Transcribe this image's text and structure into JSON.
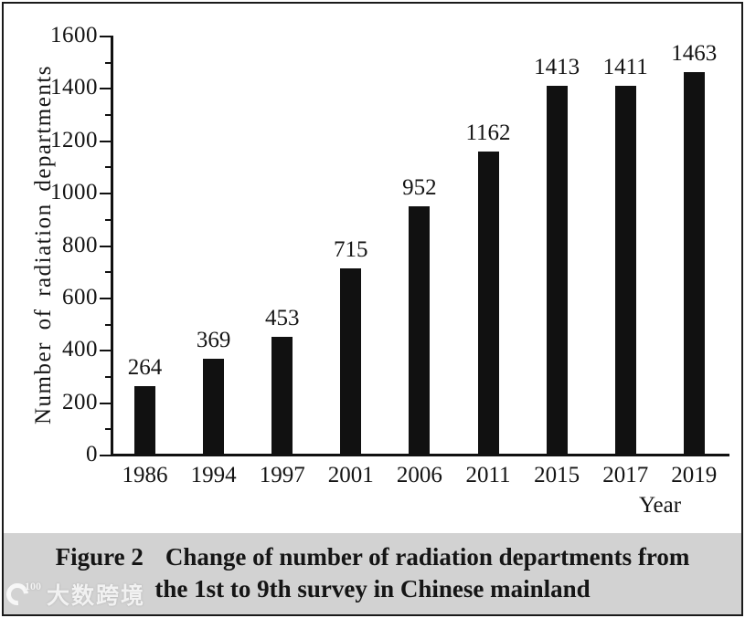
{
  "chart_data": {
    "type": "bar",
    "title": "",
    "categories": [
      "1986",
      "1994",
      "1997",
      "2001",
      "2006",
      "2011",
      "2015",
      "2017",
      "2019"
    ],
    "values": [
      264,
      369,
      453,
      715,
      952,
      1162,
      1413,
      1411,
      1463
    ],
    "value_labels": [
      "264",
      "369",
      "453",
      "715",
      "952",
      "1162",
      "1413",
      "1411",
      "1463"
    ],
    "xlabel": "Year",
    "ylabel": "Number of radiation departments",
    "ylim": [
      0,
      1600
    ],
    "ytick_major_step": 200,
    "ytick_minor_step": 100,
    "ytick_labels": [
      "0",
      "200",
      "400",
      "600",
      "800",
      "1000",
      "1200",
      "1400",
      "1600"
    ],
    "grid": "off",
    "legend": "none",
    "bar_color": "#111111"
  },
  "caption": {
    "figure_label": "Figure 2",
    "title_line1": "Change of number of radiation departments from",
    "title_line2": "the 1st to 9th survey in Chinese mainland",
    "background_color": "#d2d2d2"
  },
  "watermark": {
    "logo_superscript": "100",
    "text": "大数跨境"
  },
  "colors": {
    "ink": "#111111",
    "background": "#ffffff",
    "caption_bg": "#d2d2d2",
    "border": "#1a1a1a"
  }
}
